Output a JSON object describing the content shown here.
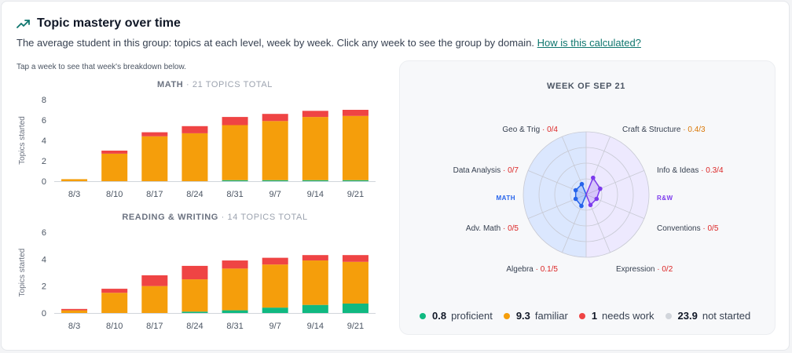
{
  "header": {
    "title": "Topic mastery over time",
    "subtitle": "The average student in this group: topics at each level, week by week. Click any week to see the group by domain.",
    "link": "How is this calculated?",
    "hint": "Tap a week to see that week's breakdown below."
  },
  "colors": {
    "proficient": "#10b981",
    "familiar": "#f59e0b",
    "needs_work": "#ef4444",
    "not_started": "#d1d5db",
    "math": "#2563eb",
    "rw": "#7c3aed",
    "accent": "#0f766e"
  },
  "chart_data": [
    {
      "type": "bar",
      "stacked": true,
      "title": "MATH",
      "subtitle": "21 TOPICS TOTAL",
      "ylabel": "Topics started",
      "ylim": [
        0,
        8
      ],
      "yticks": [
        0,
        2,
        4,
        6,
        8
      ],
      "categories": [
        "8/3",
        "8/10",
        "8/17",
        "8/24",
        "8/31",
        "9/7",
        "9/14",
        "9/21"
      ],
      "series": [
        {
          "key": "proficient",
          "values": [
            0,
            0,
            0,
            0,
            0.1,
            0.1,
            0.1,
            0.1
          ]
        },
        {
          "key": "familiar",
          "values": [
            0.2,
            2.7,
            4.4,
            4.7,
            5.4,
            5.8,
            6.2,
            6.3
          ]
        },
        {
          "key": "needs_work",
          "values": [
            0,
            0.3,
            0.4,
            0.7,
            0.8,
            0.7,
            0.6,
            0.6
          ]
        }
      ]
    },
    {
      "type": "bar",
      "stacked": true,
      "title": "READING & WRITING",
      "subtitle": "14 TOPICS TOTAL",
      "ylabel": "Topics started",
      "ylim": [
        0,
        6
      ],
      "yticks": [
        0,
        2,
        4,
        6
      ],
      "categories": [
        "8/3",
        "8/10",
        "8/17",
        "8/24",
        "8/31",
        "9/7",
        "9/14",
        "9/21"
      ],
      "series": [
        {
          "key": "proficient",
          "values": [
            0,
            0,
            0,
            0.1,
            0.2,
            0.4,
            0.6,
            0.7
          ]
        },
        {
          "key": "familiar",
          "values": [
            0.2,
            1.5,
            2.0,
            2.4,
            3.1,
            3.2,
            3.3,
            3.1
          ]
        },
        {
          "key": "needs_work",
          "values": [
            0.1,
            0.3,
            0.8,
            1.0,
            0.6,
            0.5,
            0.4,
            0.5
          ]
        }
      ]
    },
    {
      "type": "radar",
      "title": "WEEK OF SEP 21",
      "groups": [
        {
          "name": "MATH",
          "key": "math"
        },
        {
          "name": "R&W",
          "key": "rw"
        }
      ],
      "domains": [
        {
          "name": "Craft & Structure",
          "score": "0.4/3",
          "value": 0.4,
          "max": 3,
          "group": "rw",
          "status": "familiar"
        },
        {
          "name": "Info & Ideas",
          "score": "0.3/4",
          "value": 0.3,
          "max": 4,
          "group": "rw",
          "status": "needs_work"
        },
        {
          "name": "Conventions",
          "score": "0/5",
          "value": 0,
          "max": 5,
          "group": "rw",
          "status": "needs_work"
        },
        {
          "name": "Expression",
          "score": "0/2",
          "value": 0,
          "max": 2,
          "group": "rw",
          "status": "needs_work"
        },
        {
          "name": "Algebra",
          "score": "0.1/5",
          "value": 0.1,
          "max": 5,
          "group": "math",
          "status": "needs_work"
        },
        {
          "name": "Adv. Math",
          "score": "0/5",
          "value": 0,
          "max": 5,
          "group": "math",
          "status": "needs_work"
        },
        {
          "name": "Data Analysis",
          "score": "0/7",
          "value": 0,
          "max": 7,
          "group": "math",
          "status": "needs_work"
        },
        {
          "name": "Geo & Trig",
          "score": "0/4",
          "value": 0,
          "max": 4,
          "group": "math",
          "status": "needs_work"
        }
      ]
    }
  ],
  "legend": [
    {
      "key": "proficient",
      "value": "0.8",
      "label": "proficient"
    },
    {
      "key": "familiar",
      "value": "9.3",
      "label": "familiar"
    },
    {
      "key": "needs_work",
      "value": "1",
      "label": "needs work"
    },
    {
      "key": "not_started",
      "value": "23.9",
      "label": "not started"
    }
  ]
}
